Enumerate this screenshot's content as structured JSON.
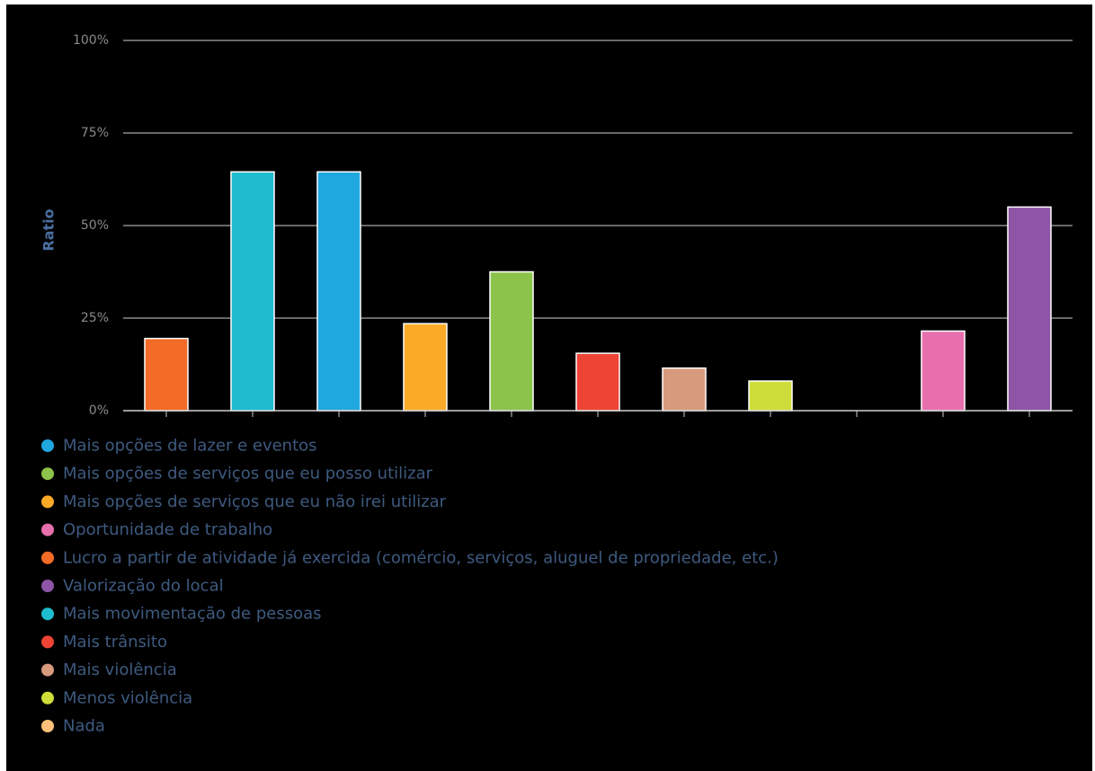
{
  "chart_data": {
    "type": "bar",
    "title": "",
    "xlabel": "",
    "ylabel": "Ratio",
    "ylim": [
      0,
      100
    ],
    "y_ticks": [
      "0%",
      "25%",
      "50%",
      "75%",
      "100%"
    ],
    "grid": true,
    "legend_position": "bottom",
    "categories": [
      "Lucro a partir de atividade já exercida (comércio, serviços, aluguel de propriedade, etc.)",
      "Mais movimentação de pessoas",
      "Mais opções de lazer e eventos",
      "Mais opções de serviços que eu não irei utilizar",
      "Mais opções de serviços que eu posso utilizar",
      "Mais trânsito",
      "Mais violência",
      "Menos violência",
      "Nada",
      "Oportunidade de trabalho",
      "Valorização do local"
    ],
    "values": [
      19.5,
      64.5,
      64.5,
      23.5,
      37.5,
      15.5,
      11.5,
      8,
      0,
      21.5,
      55
    ],
    "bar_colors": [
      "#f26b27",
      "#1fbccf",
      "#1fa7e0",
      "#fbaa27",
      "#8cc34b",
      "#ee4436",
      "#d89a7d",
      "#cfdd3a",
      "#fcc07a",
      "#e86fae",
      "#8e55a6"
    ],
    "legend": [
      {
        "label": "Mais opções de lazer e eventos",
        "color": "#1fa7e0"
      },
      {
        "label": "Mais opções de serviços que eu posso utilizar",
        "color": "#8cc34b"
      },
      {
        "label": "Mais opções de serviços que eu não irei utilizar",
        "color": "#fbaa27"
      },
      {
        "label": "Oportunidade de trabalho",
        "color": "#e86fae"
      },
      {
        "label": "Lucro a partir de atividade já exercida (comércio, serviços, aluguel de propriedade, etc.)",
        "color": "#f26b27"
      },
      {
        "label": "Valorização do local",
        "color": "#8e55a6"
      },
      {
        "label": "Mais movimentação de pessoas",
        "color": "#1fbccf"
      },
      {
        "label": "Mais trânsito",
        "color": "#ee4436"
      },
      {
        "label": "Mais violência",
        "color": "#d89a7d"
      },
      {
        "label": "Menos violência",
        "color": "#cfdd3a"
      },
      {
        "label": "Nada",
        "color": "#fcc07a"
      }
    ]
  }
}
